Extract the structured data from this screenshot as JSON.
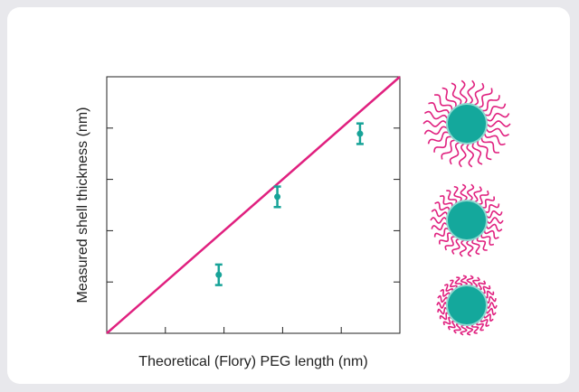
{
  "chart_data": {
    "type": "scatter",
    "xlabel": "Theoretical (Flory) PEG length (nm)",
    "ylabel": "Measured shell thickness (nm)",
    "xlim": [
      0,
      5
    ],
    "ylim": [
      0,
      5
    ],
    "xticks": [
      1,
      2,
      3,
      4
    ],
    "yticks": [
      1,
      2,
      3,
      4
    ],
    "series": [
      {
        "color": "#17a398",
        "x": [
          1.91,
          2.91,
          4.32
        ],
        "values": [
          1.14,
          2.66,
          3.89
        ],
        "errors": [
          0.2,
          0.2,
          0.2
        ]
      }
    ],
    "reference_line": {
      "color": "#e0207f",
      "x": [
        0,
        5
      ],
      "y": [
        0,
        5
      ]
    }
  }
}
